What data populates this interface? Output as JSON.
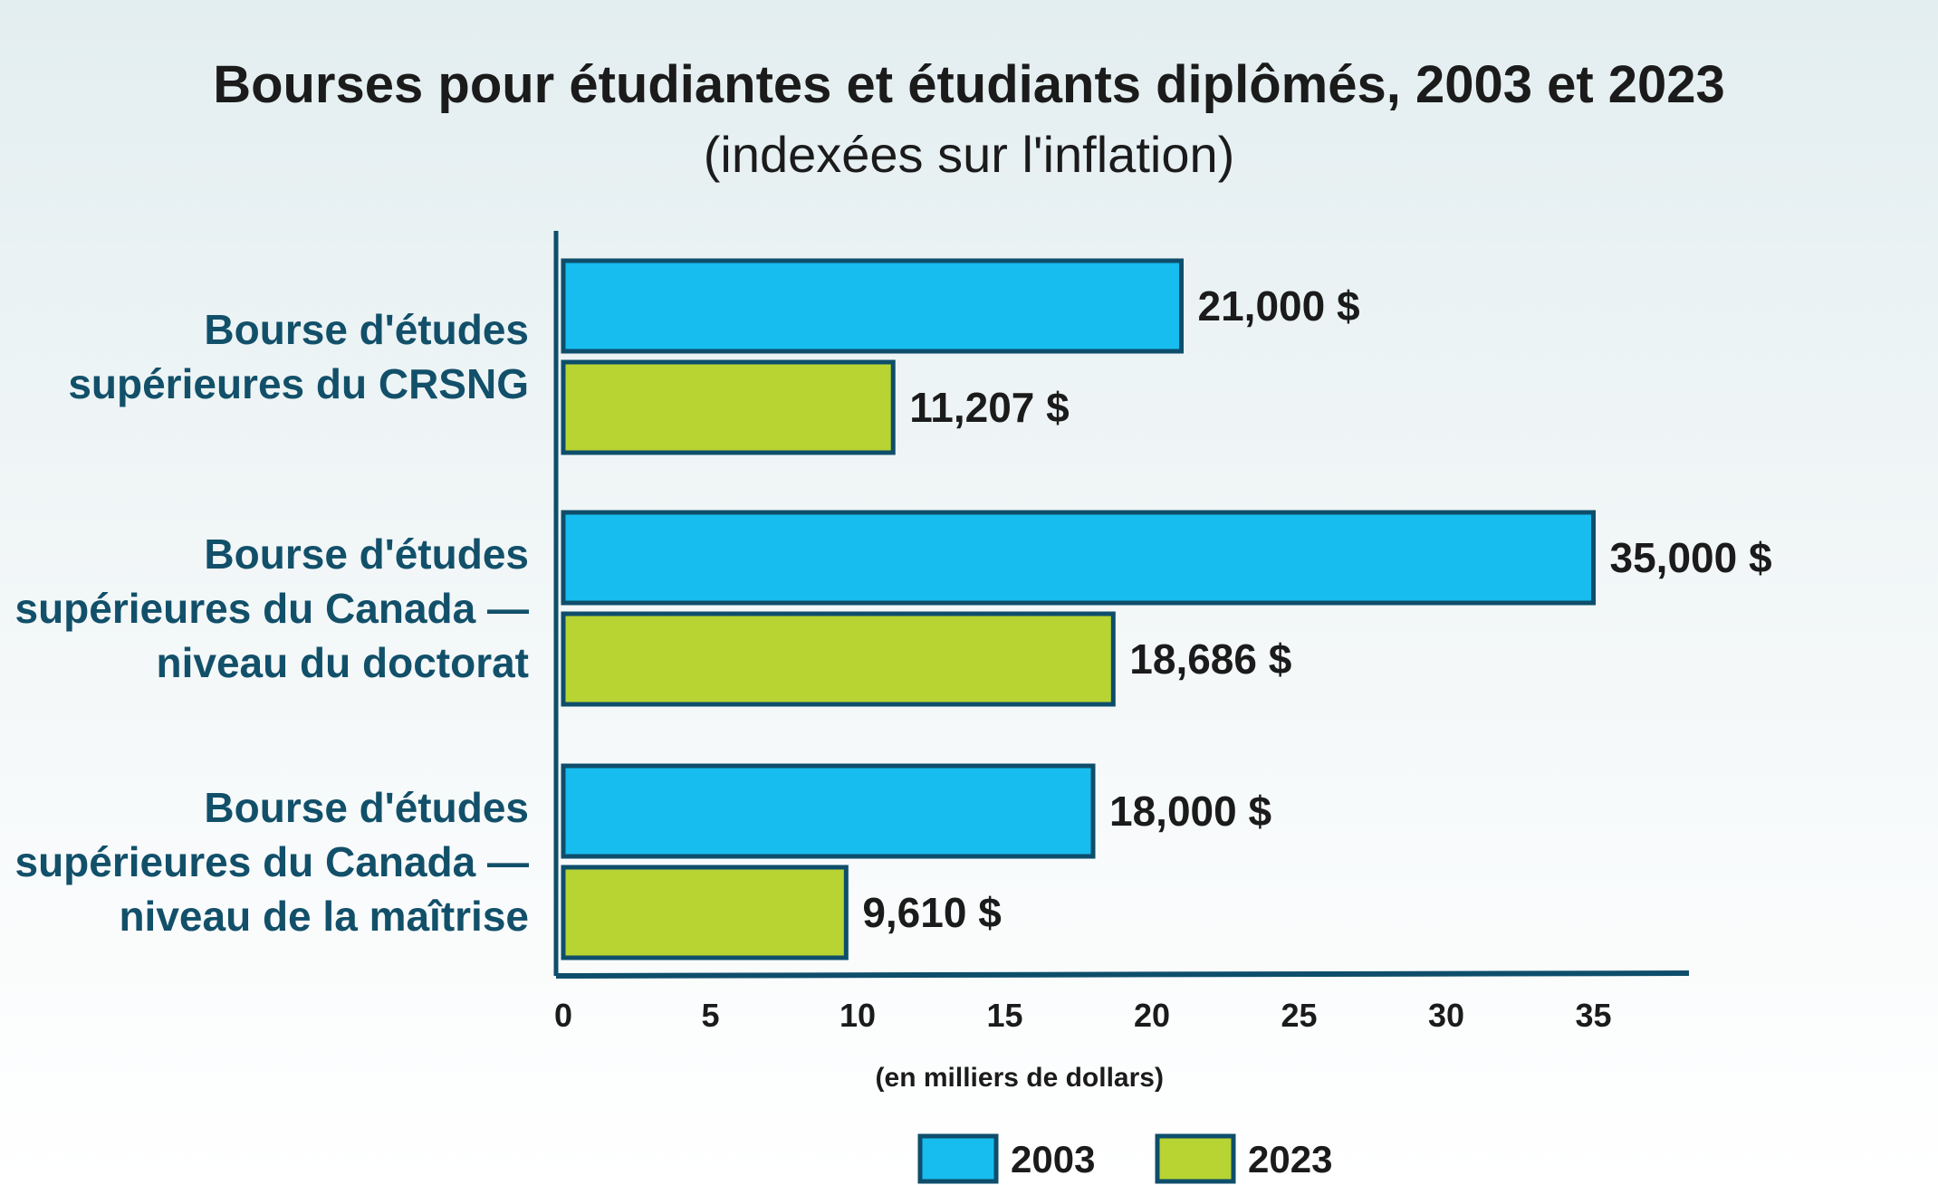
{
  "chart_data": {
    "type": "bar",
    "orientation": "horizontal",
    "title": "Bourses pour étudiantes et étudiants diplômés, 2003 et 2023",
    "subtitle": "(indexées sur l'inflation)",
    "xlabel": "(en milliers de dollars)",
    "xlim": [
      0,
      38
    ],
    "xticks": [
      0,
      5,
      10,
      15,
      20,
      25,
      30,
      35
    ],
    "grid": false,
    "legend_position": "bottom",
    "categories": [
      [
        "Bourse d'études",
        "supérieures du CRSNG"
      ],
      [
        "Bourse d'études",
        "supérieures du Canada —",
        "niveau du doctorat"
      ],
      [
        "Bourse d'études",
        "supérieures du Canada —",
        "niveau de la maîtrise"
      ]
    ],
    "series": [
      {
        "name": "2003",
        "color": "#17bdef",
        "values": [
          21,
          35,
          18
        ],
        "labels": [
          "21,000 $",
          "35,000 $",
          "18,000 $"
        ]
      },
      {
        "name": "2023",
        "color": "#b8d432",
        "values": [
          11.207,
          18.686,
          9.61
        ],
        "labels": [
          "11,207 $",
          "18,686 $",
          "9,610 $"
        ]
      }
    ],
    "outline_color": "#0e4e6b"
  }
}
